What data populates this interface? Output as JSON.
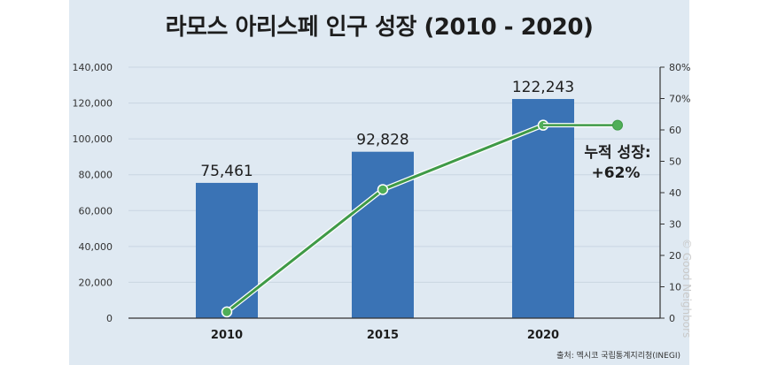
{
  "chart_data": {
    "type": "bar",
    "title": "라모스 아리스페 인구 성장 (2010 - 2020)",
    "categories": [
      "2010",
      "2015",
      "2020"
    ],
    "series": [
      {
        "type": "bar",
        "values": [
          75461,
          92828,
          122243
        ],
        "data_labels": [
          "75,461",
          "92,828",
          "122,243"
        ],
        "color": "#3a73b5"
      },
      {
        "type": "line",
        "axis": "right",
        "values": [
          2,
          41,
          61.5
        ],
        "color": "#3f9a47"
      }
    ],
    "y_left": {
      "range": [
        0,
        140000
      ],
      "ticks": [
        "0",
        "20,000",
        "40,000",
        "60,000",
        "80,000",
        "100,000",
        "120,000",
        "140,000"
      ]
    },
    "y_right": {
      "range": [
        0,
        80
      ],
      "ticks": [
        "0",
        "10",
        "20",
        "30",
        "40",
        "50",
        "60",
        "70%",
        "80%"
      ]
    },
    "annotation": {
      "line1": "누적 성장:",
      "line2": "+62%",
      "value": 61.5
    },
    "grid": true,
    "source": "출처: 멕시코 국립통계지리청(INEGI)"
  },
  "watermark": "© Good Neighbors"
}
